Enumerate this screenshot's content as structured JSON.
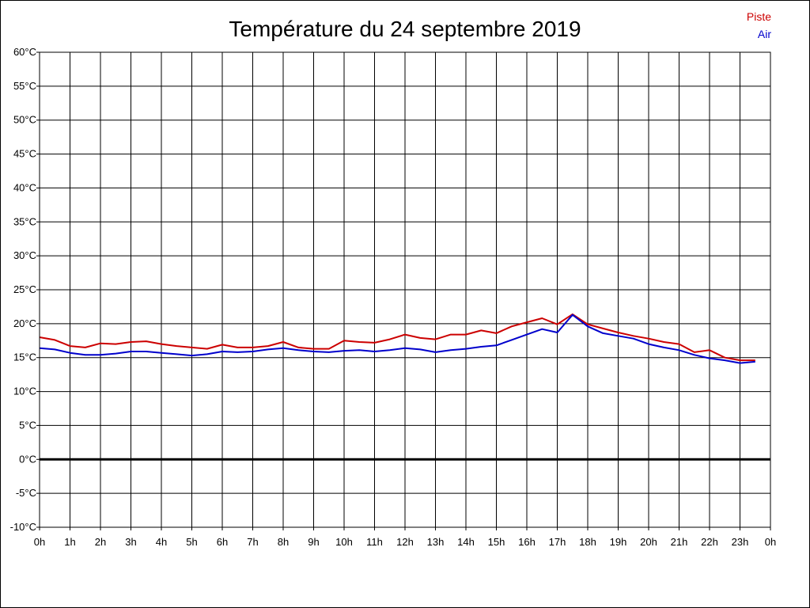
{
  "chart_data": {
    "type": "line",
    "title": "Température du 24 septembre 2019",
    "xlabel": "",
    "ylabel": "",
    "x_tick_labels": [
      "0h",
      "1h",
      "2h",
      "3h",
      "4h",
      "5h",
      "6h",
      "7h",
      "8h",
      "9h",
      "10h",
      "11h",
      "12h",
      "13h",
      "14h",
      "15h",
      "16h",
      "17h",
      "18h",
      "19h",
      "20h",
      "21h",
      "22h",
      "23h",
      "0h"
    ],
    "y_tick_labels": [
      "-10°C",
      "-5°C",
      "0°C",
      "5°C",
      "10°C",
      "15°C",
      "20°C",
      "25°C",
      "30°C",
      "35°C",
      "40°C",
      "45°C",
      "50°C",
      "55°C",
      "60°C"
    ],
    "xlim": [
      0,
      24
    ],
    "ylim": [
      -10,
      60
    ],
    "grid": true,
    "legend_position": "top-right",
    "zero_line": true,
    "series": [
      {
        "name": "Piste",
        "color": "#cc0000",
        "x": [
          0,
          0.5,
          1,
          1.5,
          2,
          2.5,
          3,
          3.5,
          4,
          4.5,
          5,
          5.5,
          6,
          6.5,
          7,
          7.5,
          8,
          8.5,
          9,
          9.5,
          10,
          10.5,
          11,
          11.5,
          12,
          12.5,
          13,
          13.5,
          14,
          14.5,
          15,
          15.5,
          16,
          16.5,
          17,
          17.5,
          18,
          18.5,
          19,
          19.5,
          20,
          20.5,
          21,
          21.5,
          22,
          22.5,
          23,
          23.5
        ],
        "values": [
          18,
          17.6,
          16.7,
          16.5,
          17.1,
          17,
          17.3,
          17.4,
          17,
          16.7,
          16.5,
          16.3,
          16.9,
          16.5,
          16.5,
          16.7,
          17.3,
          16.5,
          16.3,
          16.3,
          17.5,
          17.3,
          17.2,
          17.7,
          18.4,
          17.9,
          17.7,
          18.4,
          18.4,
          19,
          18.6,
          19.6,
          20.2,
          20.8,
          19.9,
          21.4,
          19.9,
          19.3,
          18.7,
          18.2,
          17.8,
          17.3,
          17,
          15.8,
          16.1,
          15,
          14.6,
          14.6
        ]
      },
      {
        "name": "Air",
        "color": "#0000cc",
        "x": [
          0,
          0.5,
          1,
          1.5,
          2,
          2.5,
          3,
          3.5,
          4,
          4.5,
          5,
          5.5,
          6,
          6.5,
          7,
          7.5,
          8,
          8.5,
          9,
          9.5,
          10,
          10.5,
          11,
          11.5,
          12,
          12.5,
          13,
          13.5,
          14,
          14.5,
          15,
          15.5,
          16,
          16.5,
          17,
          17.5,
          18,
          18.5,
          19,
          19.5,
          20,
          20.5,
          21,
          21.5,
          22,
          22.5,
          23,
          23.5
        ],
        "values": [
          16.4,
          16.2,
          15.7,
          15.4,
          15.4,
          15.6,
          15.9,
          15.9,
          15.7,
          15.5,
          15.3,
          15.5,
          15.9,
          15.8,
          15.9,
          16.2,
          16.4,
          16.1,
          15.9,
          15.8,
          16,
          16.1,
          15.9,
          16.1,
          16.4,
          16.2,
          15.8,
          16.1,
          16.3,
          16.6,
          16.8,
          17.6,
          18.4,
          19.2,
          18.7,
          21.3,
          19.6,
          18.6,
          18.2,
          17.8,
          17,
          16.5,
          16.1,
          15.4,
          14.9,
          14.6,
          14.2,
          14.4
        ]
      }
    ]
  }
}
